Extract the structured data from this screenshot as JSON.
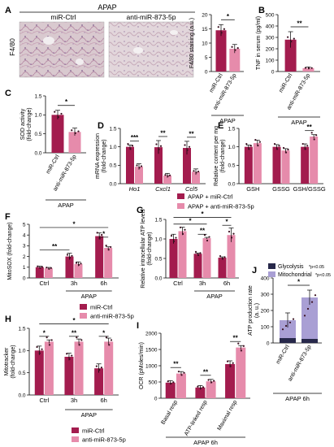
{
  "colors": {
    "dark": "#a31c4e",
    "light": "#e68bab",
    "mito": "#a99fd4",
    "glyco": "#27284a",
    "point": "#3a1020"
  },
  "panels": {
    "A": "A",
    "B": "B",
    "C": "C",
    "D": "D",
    "E": "E",
    "F": "F",
    "G": "G",
    "H": "H",
    "I": "I",
    "J": "J"
  },
  "panel_a_header": "APAP",
  "panel_a_label_mirctrl": "miR-Ctrl",
  "panel_a_label_anti": "anti-miR-873-5p",
  "panel_a_side_label": "F4/80",
  "groups": {
    "mirctrl": "miR-Ctrl",
    "anti": "anti-miR-873-5p"
  },
  "apap": "APAP",
  "apap6h": "APAP 6h",
  "legend_DE": {
    "dark": "APAP + miR-Ctrl",
    "light": "APAP + anti-miR-873-5p"
  },
  "chart_data": [
    {
      "id": "A",
      "type": "bar",
      "ylabel": "F4/80 staining (a.u.)",
      "ylim": [
        0,
        20
      ],
      "yticks": [
        "0",
        "5",
        "10",
        "15",
        "20"
      ],
      "categories": [
        "miR-Ctrl",
        "anti-miR-873-5p"
      ],
      "values": [
        14.5,
        8
      ],
      "errors": [
        2,
        1.5
      ],
      "annotation": "*",
      "group_label": "APAP"
    },
    {
      "id": "B",
      "type": "bar",
      "ylabel": "TNF in serum (pg/ml)",
      "ylim": [
        0,
        500
      ],
      "yticks": [
        "0",
        "100",
        "200",
        "300",
        "400",
        "500"
      ],
      "categories": [
        "miR-Ctrl",
        "anti-miR-873-5p"
      ],
      "values": [
        280,
        30
      ],
      "errors": [
        70,
        10
      ],
      "annotation": "**",
      "group_label": "APAP"
    },
    {
      "id": "C",
      "type": "bar",
      "ylabel": "SOD activity (fold-change)",
      "ylim": [
        0,
        1.5
      ],
      "yticks": [
        "0.0",
        "0.5",
        "1.0",
        "1.5"
      ],
      "categories": [
        "miR-Ctrl",
        "anti-miR-873-5p"
      ],
      "values": [
        1.0,
        0.55
      ],
      "errors": [
        0.12,
        0.1
      ],
      "annotation": "*",
      "group_label": "APAP"
    },
    {
      "id": "D",
      "type": "bar",
      "ylabel": "mRNA expression (fold-change)",
      "ylim": [
        0,
        1.5
      ],
      "yticks": [
        "0.0",
        "0.5",
        "1.0",
        "1.5"
      ],
      "categories": [
        "Ho1",
        "Cxcl1",
        "Ccl5"
      ],
      "series": [
        {
          "name": "APAP + miR-Ctrl",
          "values": [
            1.0,
            0.99,
            0.97
          ],
          "errors": [
            0.05,
            0.18,
            0.18
          ]
        },
        {
          "name": "APAP + anti-miR-873-5p",
          "values": [
            0.46,
            0.22,
            0.32
          ],
          "errors": [
            0.08,
            0.06,
            0.08
          ]
        }
      ],
      "annotations": [
        "***",
        "**",
        "**"
      ]
    },
    {
      "id": "E",
      "type": "bar",
      "ylabel": "Relative content per mg (fold-change)",
      "ylim": [
        0,
        1.5
      ],
      "yticks": [
        "0.0",
        "0.5",
        "1.0",
        "1.5"
      ],
      "categories": [
        "GSH",
        "GSSG",
        "GSH/GSSG"
      ],
      "series": [
        {
          "name": "APAP + miR-Ctrl",
          "values": [
            1.0,
            1.0,
            1.0
          ],
          "errors": [
            0.05,
            0.06,
            0.08
          ]
        },
        {
          "name": "APAP + anti-miR-873-5p",
          "values": [
            1.1,
            0.9,
            1.28
          ],
          "errors": [
            0.08,
            0.05,
            0.05
          ]
        }
      ],
      "annotations": [
        "",
        "",
        "**"
      ]
    },
    {
      "id": "F",
      "type": "bar",
      "ylabel": "MitoSOX (fold-change)",
      "ylim": [
        0,
        5
      ],
      "yticks": [
        "0",
        "1",
        "2",
        "3",
        "4",
        "5"
      ],
      "categories": [
        "Ctrl",
        "3h",
        "6h"
      ],
      "series": [
        {
          "name": "miR-Ctrl",
          "values": [
            1.0,
            2.0,
            3.9
          ],
          "errors": [
            0.1,
            0.3,
            0.3
          ]
        },
        {
          "name": "anti-miR-873-5p",
          "values": [
            0.9,
            1.3,
            2.8
          ],
          "errors": [
            0.08,
            0.2,
            0.1
          ]
        }
      ],
      "annotations": [
        {
          "text": "*",
          "level": 4.7,
          "from": 0,
          "to": 5
        },
        {
          "text": "**",
          "level": 2.6,
          "from": 0,
          "to": 2
        },
        {
          "text": "*",
          "level": 3.8,
          "from": 4,
          "to": 5
        }
      ],
      "group_label": "APAP"
    },
    {
      "id": "G",
      "type": "bar",
      "ylabel": "Relative intracellular ATP levels (fold-change)",
      "ylim": [
        0,
        1.5
      ],
      "yticks": [
        "0.0",
        "0.5",
        "1.0",
        "1.5"
      ],
      "categories": [
        "Ctrl",
        "3h",
        "6h"
      ],
      "series": [
        {
          "name": "miR-Ctrl",
          "values": [
            1.0,
            0.62,
            0.52
          ],
          "errors": [
            0.12,
            0.02,
            0.02
          ]
        },
        {
          "name": "anti-miR-873-5p",
          "values": [
            1.2,
            1.02,
            1.1
          ],
          "errors": [
            0.1,
            0.02,
            0.18
          ]
        }
      ],
      "annotations": [
        {
          "text": "*",
          "level": 1.55,
          "from": 0,
          "to": 5
        },
        {
          "text": "*",
          "level": 1.38,
          "from": 0,
          "to": 3
        },
        {
          "text": "**",
          "level": 1.12,
          "from": 2,
          "to": 3
        },
        {
          "text": "*",
          "level": 1.35,
          "from": 4,
          "to": 5
        }
      ],
      "group_label": "APAP"
    },
    {
      "id": "H",
      "type": "bar",
      "ylabel": "Mitotracker (fold-change)",
      "ylim": [
        0,
        1.5
      ],
      "yticks": [
        "0.0",
        "0.5",
        "1.0",
        "1.5"
      ],
      "categories": [
        "Ctrl",
        "3h",
        "6h"
      ],
      "series": [
        {
          "name": "miR-Ctrl",
          "values": [
            1.0,
            0.86,
            0.6
          ],
          "errors": [
            0.1,
            0.08,
            0.1
          ]
        },
        {
          "name": "anti-miR-873-5p",
          "values": [
            1.2,
            1.2,
            1.2
          ],
          "errors": [
            0.04,
            0.06,
            0.08
          ]
        }
      ],
      "annotations": [
        {
          "text": "*",
          "level": 1.6,
          "from": 0,
          "to": 5
        },
        {
          "text": "*",
          "level": 1.32,
          "from": 0,
          "to": 1
        },
        {
          "text": "**",
          "level": 1.32,
          "from": 2,
          "to": 3
        },
        {
          "text": "*",
          "level": 1.32,
          "from": 4,
          "to": 5
        }
      ],
      "group_label": "APAP"
    },
    {
      "id": "I",
      "type": "bar",
      "ylabel": "OCR (pMoles/min)",
      "ylim": [
        0,
        2000
      ],
      "yticks": [
        "0",
        "500",
        "1000",
        "1500",
        "2000"
      ],
      "categories": [
        "Basal resp",
        "ATP-linked resp",
        "Maximal resp"
      ],
      "series": [
        {
          "name": "miR-Ctrl",
          "values": [
            480,
            330,
            1050
          ],
          "errors": [
            60,
            60,
            100
          ]
        },
        {
          "name": "anti-miR-873-5p",
          "values": [
            760,
            520,
            1560
          ],
          "errors": [
            60,
            60,
            60
          ]
        }
      ],
      "annotations": [
        "**",
        "**",
        "**"
      ],
      "group_label": "APAP 6h"
    },
    {
      "id": "J",
      "type": "bar",
      "stacked": true,
      "ylabel": "ATP production rate (a. u.)",
      "ylim": [
        0,
        400
      ],
      "yticks": [
        "0",
        "100",
        "200",
        "300",
        "400"
      ],
      "categories": [
        "miR-Ctrl",
        "anti-miR-873-5p"
      ],
      "series": [
        {
          "name": "Glycolysis",
          "values": [
            30,
            25
          ]
        },
        {
          "name": "Mitochondrial",
          "values": [
            110,
            255
          ]
        }
      ],
      "errors": [
        45,
        45
      ],
      "legend": [
        "Glycolysis",
        "Mitochondrial"
      ],
      "legend_notes": [
        "*p<0.05",
        "*p<0.05"
      ],
      "annotation": "*",
      "group_label": "APAP 6h"
    }
  ]
}
